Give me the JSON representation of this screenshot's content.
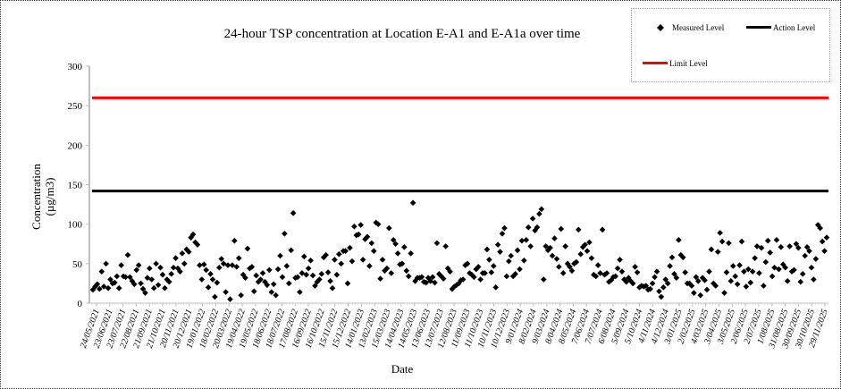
{
  "chart_data": {
    "type": "scatter",
    "title": "24-hour TSP concentration at Location E-A1 and E-A1a over time",
    "xlabel": "Date",
    "ylabel": "Concentration (µg/m3)",
    "ylabel_lines": [
      "Concentration",
      "(µg/m3)"
    ],
    "ylim": [
      0,
      300
    ],
    "yticks": [
      0,
      50,
      100,
      150,
      200,
      250,
      300
    ],
    "grid": false,
    "legend_position": "top-right",
    "xtick_labels": [
      "24/05/2021",
      "23/06/2021",
      "23/07/2021",
      "22/08/2021",
      "21/09/2021",
      "21/10/2021",
      "20/11/2021",
      "20/12/2021",
      "19/01/2022",
      "18/02/2022",
      "20/03/2022",
      "19/04/2022",
      "19/05/2022",
      "18/06/2022",
      "18/07/2022",
      "17/08/2022",
      "16/09/2022",
      "16/10/2022",
      "15/11/2022",
      "15/12/2022",
      "14/01/2023",
      "13/02/2023",
      "15/03/2023",
      "14/04/2023",
      "14/05/2023",
      "13/06/2023",
      "13/07/2023",
      "12/08/2023",
      "11/09/2023",
      "11/10/2023",
      "10/11/2023",
      "10/12/2023",
      "9/01/2024",
      "8/02/2024",
      "9/03/2024",
      "8/04/2024",
      "8/05/2024",
      "7/06/2024",
      "7/07/2024",
      "6/08/2024",
      "5/09/2024",
      "5/10/2024",
      "4/11/2024",
      "4/12/2024",
      "3/01/2025",
      "2/02/2025",
      "4/03/2025",
      "3/04/2025",
      "3/05/2025",
      "2/06/2025",
      "2/07/2025",
      "1/08/2025",
      "31/08/2025",
      "30/09/2025",
      "30/10/2025",
      "29/11/2025"
    ],
    "series": [
      {
        "name": "Measured Level",
        "type": "scatter",
        "marker": "diamond",
        "color": "#000000",
        "values": [
          17,
          21,
          24,
          18,
          40,
          21,
          50,
          19,
          30,
          25,
          26,
          34,
          19,
          48,
          34,
          33,
          61,
          33,
          28,
          24,
          42,
          48,
          25,
          18,
          13,
          32,
          44,
          30,
          19,
          50,
          23,
          45,
          36,
          19,
          30,
          27,
          37,
          45,
          57,
          44,
          40,
          63,
          50,
          68,
          65,
          83,
          87,
          77,
          74,
          48,
          30,
          49,
          42,
          20,
          37,
          30,
          8,
          26,
          45,
          56,
          50,
          14,
          48,
          5,
          48,
          79,
          46,
          57,
          10,
          36,
          32,
          69,
          44,
          46,
          15,
          35,
          27,
          30,
          38,
          27,
          23,
          42,
          14,
          24,
          10,
          43,
          60,
          33,
          88,
          47,
          25,
          67,
          114,
          32,
          33,
          14,
          38,
          59,
          36,
          44,
          54,
          35,
          22,
          27,
          30,
          37,
          58,
          61,
          39,
          28,
          19,
          55,
          36,
          62,
          50,
          66,
          66,
          25,
          70,
          53,
          97,
          86,
          87,
          99,
          55,
          81,
          84,
          47,
          76,
          66,
          102,
          100,
          31,
          55,
          41,
          44,
          95,
          38,
          80,
          75,
          63,
          49,
          50,
          71,
          41,
          34,
          63,
          127,
          28,
          32,
          32,
          33,
          27,
          26,
          32,
          28,
          33,
          26,
          76,
          37,
          34,
          31,
          72,
          44,
          40,
          18,
          21,
          23,
          25,
          29,
          30,
          48,
          50,
          38,
          36,
          33,
          43,
          46,
          30,
          38,
          38,
          68,
          55,
          39,
          47,
          20,
          74,
          65,
          88,
          95,
          34,
          53,
          60,
          34,
          37,
          67,
          43,
          79,
          54,
          80,
          96,
          72,
          107,
          92,
          96,
          113,
          119,
          30,
          72,
          67,
          70,
          60,
          82,
          56,
          46,
          94,
          38,
          72,
          50,
          46,
          41,
          50,
          52,
          93,
          62,
          71,
          74,
          66,
          77,
          57,
          36,
          34,
          48,
          38,
          93,
          36,
          38,
          27,
          29,
          33,
          34,
          44,
          55,
          40,
          30,
          27,
          32,
          28,
          25,
          46,
          39,
          20,
          22,
          21,
          22,
          17,
          18,
          25,
          33,
          40,
          15,
          8,
          20,
          30,
          25,
          47,
          58,
          37,
          32,
          80,
          61,
          58,
          39,
          25,
          25,
          22,
          13,
          33,
          28,
          10,
          32,
          29,
          17,
          40,
          68,
          25,
          22,
          65,
          89,
          78,
          13,
          39,
          76,
          28,
          47,
          34,
          24,
          48,
          78,
          40,
          21,
          43,
          26,
          40,
          57,
          72,
          38,
          70,
          22,
          52,
          79,
          64,
          34,
          45,
          80,
          43,
          71,
          49,
          45,
          28,
          72,
          40,
          42,
          75,
          70,
          27,
          37,
          60,
          71,
          66,
          45,
          30,
          56,
          99,
          95,
          78,
          66,
          83
        ]
      },
      {
        "name": "Action Level",
        "type": "line",
        "color": "#000000",
        "value": 142
      },
      {
        "name": "Limit Level",
        "type": "line",
        "color": "#ff0000",
        "value": 260
      }
    ]
  },
  "legend": {
    "measured": "Measured Level",
    "action": "Action Level",
    "limit": "Limit Level"
  },
  "colors": {
    "limit": "#ff0000",
    "action": "#000000",
    "marker": "#000000",
    "axis": "#bfbfbf"
  }
}
